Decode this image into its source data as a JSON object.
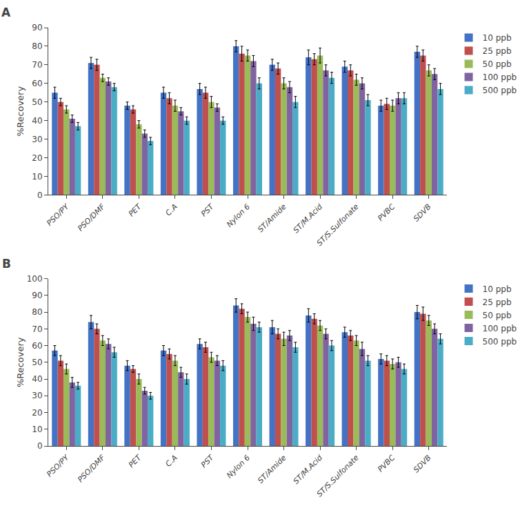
{
  "chart_data": [
    {
      "type": "bar",
      "annotations": [
        "A"
      ],
      "categories": [
        "PSO/PY",
        "PSO/DMF",
        "PET",
        "C.A",
        "PST",
        "Nylon 6",
        "ST/Amide",
        "ST/M.Acid",
        "ST/S.Sulfonate",
        "PVBC",
        "SDVB"
      ],
      "series": [
        {
          "name": "10 ppb",
          "color": "#4472c4",
          "values": [
            55,
            71,
            48,
            55,
            57,
            80,
            70,
            74,
            69,
            48,
            77
          ],
          "errors": [
            3,
            3,
            2,
            3,
            3,
            3,
            3,
            4,
            3,
            3,
            3
          ]
        },
        {
          "name": "25 ppb",
          "color": "#c0504d",
          "values": [
            50,
            70,
            46,
            52,
            55,
            76,
            68,
            73,
            67,
            49,
            75
          ],
          "errors": [
            2,
            3,
            2,
            3,
            3,
            4,
            3,
            3,
            3,
            3,
            3
          ]
        },
        {
          "name": "50 ppb",
          "color": "#9bbb59",
          "values": [
            46,
            63,
            38,
            48,
            50,
            75,
            60,
            75,
            62,
            48,
            67
          ],
          "errors": [
            2,
            2,
            2,
            3,
            3,
            3,
            3,
            4,
            3,
            3,
            3
          ]
        },
        {
          "name": "100 ppb",
          "color": "#8064a2",
          "values": [
            41,
            61,
            33,
            45,
            47,
            72,
            58,
            67,
            60,
            52,
            65
          ],
          "errors": [
            2,
            2,
            2,
            2,
            2,
            3,
            3,
            3,
            3,
            3,
            3
          ]
        },
        {
          "name": "500 ppb",
          "color": "#4bacc6",
          "values": [
            37,
            58,
            29,
            40,
            40,
            60,
            50,
            63,
            51,
            52,
            57
          ],
          "errors": [
            2,
            2,
            2,
            2,
            2,
            3,
            3,
            3,
            3,
            3,
            3
          ]
        }
      ],
      "ylabel": "%Recovery",
      "ylim": [
        0,
        90
      ],
      "yticks": [
        0,
        10,
        20,
        30,
        40,
        50,
        60,
        70,
        80,
        90
      ],
      "grid": false,
      "legend": "right"
    },
    {
      "type": "bar",
      "annotations": [
        "B"
      ],
      "categories": [
        "PSO/PY",
        "PSO/DMF",
        "PET",
        "C.A",
        "PST",
        "Nylon 6",
        "ST/Amide",
        "ST/M.Acid",
        "ST/S.Sulfonate",
        "PVBC",
        "SDVB"
      ],
      "series": [
        {
          "name": "10 ppb",
          "color": "#4472c4",
          "values": [
            57,
            74,
            48,
            57,
            61,
            84,
            71,
            78,
            68,
            52,
            80
          ],
          "errors": [
            3,
            4,
            3,
            3,
            3,
            4,
            4,
            4,
            3,
            3,
            4
          ]
        },
        {
          "name": "25 ppb",
          "color": "#c0504d",
          "values": [
            51,
            70,
            46,
            55,
            59,
            82,
            67,
            76,
            66,
            51,
            79
          ],
          "errors": [
            3,
            3,
            2,
            3,
            3,
            3,
            3,
            3,
            3,
            3,
            4
          ]
        },
        {
          "name": "50 ppb",
          "color": "#9bbb59",
          "values": [
            46,
            63,
            40,
            51,
            53,
            77,
            64,
            72,
            63,
            49,
            75
          ],
          "errors": [
            3,
            3,
            3,
            3,
            3,
            3,
            4,
            3,
            3,
            3,
            3
          ]
        },
        {
          "name": "100 ppb",
          "color": "#8064a2",
          "values": [
            38,
            61,
            33,
            44,
            51,
            73,
            66,
            67,
            58,
            50,
            70
          ],
          "errors": [
            3,
            3,
            2,
            3,
            3,
            4,
            3,
            3,
            4,
            3,
            3
          ]
        },
        {
          "name": "500 ppb",
          "color": "#4bacc6",
          "values": [
            36,
            56,
            30,
            40,
            48,
            71,
            59,
            60,
            51,
            46,
            64
          ],
          "errors": [
            2,
            3,
            2,
            3,
            3,
            3,
            3,
            3,
            3,
            3,
            3
          ]
        }
      ],
      "ylabel": "%Recovery",
      "ylim": [
        0,
        100
      ],
      "yticks": [
        0,
        10,
        20,
        30,
        40,
        50,
        60,
        70,
        80,
        90,
        100
      ],
      "grid": false,
      "legend": "right"
    }
  ]
}
